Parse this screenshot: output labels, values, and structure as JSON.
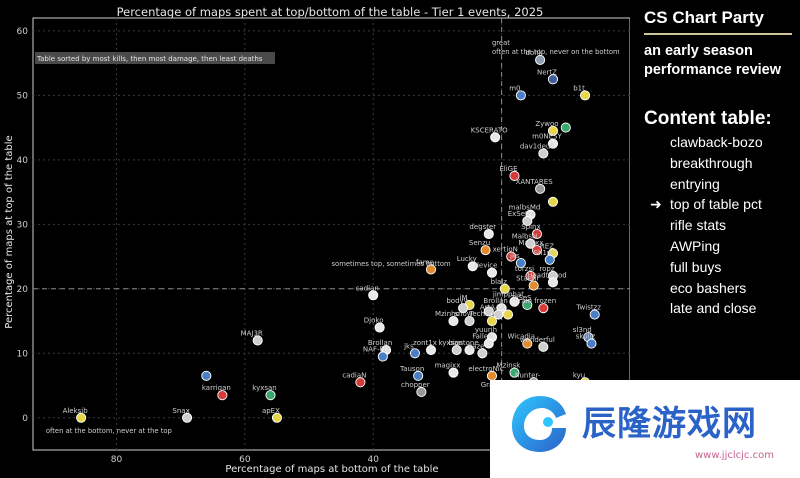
{
  "chart_data": {
    "type": "scatter",
    "title": "Percentage of maps spent at top/bottom of the table - Tier 1 events, 2025",
    "xlabel": "Percentage of maps at bottom of the table",
    "ylabel": "Percentage of maps at top of the table",
    "x_inverted": true,
    "xlim": [
      93,
      0
    ],
    "ylim": [
      -5,
      62
    ],
    "xticks": [
      80,
      60,
      40,
      20
    ],
    "yticks": [
      0,
      10,
      20,
      30,
      40,
      50,
      60
    ],
    "grid": true,
    "reference_lines": {
      "x": 20,
      "y": 20
    },
    "annotations": [
      {
        "text": "Table sorted by most kills, then most damage, then least deaths",
        "kind": "note"
      },
      {
        "text": "great",
        "x": 21.5,
        "y": 57.8
      },
      {
        "text": "often at the top, never on the bottom",
        "x": 21.5,
        "y": 56.4
      },
      {
        "text": "sometimes top, sometimes bottom",
        "x": 46.5,
        "y": 23.5
      },
      {
        "text": "often at the bottom, never at the top",
        "x": 91,
        "y": -2.4
      }
    ],
    "points": [
      {
        "name": "donk",
        "x": 14,
        "y": 55.5,
        "color": "#8fa0b4"
      },
      {
        "name": "NertZ",
        "x": 12,
        "y": 52.5,
        "color": "#3f5e9a"
      },
      {
        "name": "b1t",
        "x": 7,
        "y": 50,
        "color": "#e7d64a"
      },
      {
        "name": "m0",
        "x": 17,
        "y": 50,
        "color": "#4a7fc4"
      },
      {
        "name": "Zywoo",
        "x": 12,
        "y": 44.5,
        "color": "#e7d64a"
      },
      {
        "name": "siuhy",
        "x": 10,
        "y": 45,
        "color": "#3aa86c"
      },
      {
        "name": "KSCERATO",
        "x": 21,
        "y": 43.5,
        "color": "#e8e8e8"
      },
      {
        "name": "m0NESY",
        "x": 12,
        "y": 42.5,
        "color": "#e8e8e8"
      },
      {
        "name": "dav1deuS",
        "x": 13.5,
        "y": 41,
        "color": "#cfcfcf"
      },
      {
        "name": "EliGE",
        "x": 18,
        "y": 37.5,
        "color": "#d83a3a"
      },
      {
        "name": "XANTARES",
        "x": 14,
        "y": 35.5,
        "color": "#999999"
      },
      {
        "name": "frozen",
        "x": 12,
        "y": 33.5,
        "color": "#e7d64a"
      },
      {
        "name": "malbsMd",
        "x": 15.5,
        "y": 31.5,
        "color": "#e8e8e8"
      },
      {
        "name": "ExSetre",
        "x": 16,
        "y": 30.5,
        "color": "#cfcfcf"
      },
      {
        "name": "Spinx",
        "x": 14.5,
        "y": 28.5,
        "color": "#d83a3a"
      },
      {
        "name": "Malbs",
        "x": 15.5,
        "y": 27,
        "color": "#cfcfcf"
      },
      {
        "name": "degster",
        "x": 22,
        "y": 28.5,
        "color": "#e8e8e8"
      },
      {
        "name": "Magixx",
        "x": 14.5,
        "y": 26,
        "color": "#d83a3a"
      },
      {
        "name": "Senzu",
        "x": 22.5,
        "y": 26,
        "color": "#e28a2e"
      },
      {
        "name": "xertioN",
        "x": 18.5,
        "y": 25,
        "color": "#d83a3a"
      },
      {
        "name": "REZ",
        "x": 12,
        "y": 25.5,
        "color": "#e7d64a"
      },
      {
        "name": "Sh1ro",
        "x": 12.5,
        "y": 24.5,
        "color": "#4a7fc4"
      },
      {
        "name": "jks",
        "x": 17,
        "y": 24,
        "color": "#4a7fc4"
      },
      {
        "name": "Lucky",
        "x": 24.5,
        "y": 23.5,
        "color": "#e8e8e8"
      },
      {
        "name": "fame",
        "x": 31,
        "y": 23,
        "color": "#e28a2e"
      },
      {
        "name": "device",
        "x": 21.5,
        "y": 22.5,
        "color": "#e8e8e8"
      },
      {
        "name": "torzsi",
        "x": 15.5,
        "y": 22,
        "color": "#d83a3a"
      },
      {
        "name": "ropz",
        "x": 12,
        "y": 22,
        "color": "#cfcfcf"
      },
      {
        "name": "HeadtoGod",
        "x": 12,
        "y": 21,
        "color": "#e8e8e8"
      },
      {
        "name": "Staehr",
        "x": 15,
        "y": 20.5,
        "color": "#e28a2e"
      },
      {
        "name": "blalz",
        "x": 19.5,
        "y": 20,
        "color": "#e7d64a"
      },
      {
        "name": "cadian",
        "x": 40,
        "y": 19,
        "color": "#e8e8e8"
      },
      {
        "name": "jimpphat",
        "x": 18,
        "y": 18,
        "color": "#e8e8e8"
      },
      {
        "name": "Tesm",
        "x": 16,
        "y": 17.5,
        "color": "#3aa86c"
      },
      {
        "name": "iM",
        "x": 25,
        "y": 17.5,
        "color": "#e7d64a"
      },
      {
        "name": "bodyy",
        "x": 26,
        "y": 17,
        "color": "#cfcfcf"
      },
      {
        "name": "Brollan",
        "x": 20,
        "y": 17,
        "color": "#e8e8e8"
      },
      {
        "name": "frozen_",
        "x": 13.5,
        "y": 17,
        "color": "#d83a3a"
      },
      {
        "name": "Twistzz",
        "x": 5.5,
        "y": 16,
        "color": "#4a7fc4"
      },
      {
        "name": "rain",
        "x": 22,
        "y": 16.5,
        "color": "#cfcfcf"
      },
      {
        "name": "EliGE_2",
        "x": 19,
        "y": 16,
        "color": "#e7d64a"
      },
      {
        "name": "ArtAAA",
        "x": 20.5,
        "y": 16,
        "color": "#cfcfcf"
      },
      {
        "name": "Mzinho",
        "x": 27.5,
        "y": 15,
        "color": "#e8e8e8"
      },
      {
        "name": "snow",
        "x": 25,
        "y": 15,
        "color": "#cfcfcf"
      },
      {
        "name": "Techno4K",
        "x": 21.5,
        "y": 15,
        "color": "#e7d64a"
      },
      {
        "name": "Djoko",
        "x": 39,
        "y": 14,
        "color": "#e8e8e8"
      },
      {
        "name": "yuurih",
        "x": 21.5,
        "y": 12.5,
        "color": "#e8e8e8"
      },
      {
        "name": "sl3nd",
        "x": 6.5,
        "y": 12.5,
        "color": "#4a7fc4"
      },
      {
        "name": "skullz",
        "x": 6,
        "y": 11.5,
        "color": "#4a7fc4"
      },
      {
        "name": "MAJ3R",
        "x": 58,
        "y": 12,
        "color": "#cfcfcf"
      },
      {
        "name": "Wicadia",
        "x": 16,
        "y": 11.5,
        "color": "#e28a2e"
      },
      {
        "name": "FalleN",
        "x": 22,
        "y": 11.5,
        "color": "#e8e8e8"
      },
      {
        "name": "wonderful",
        "x": 13.5,
        "y": 11,
        "color": "#cfcfcf"
      },
      {
        "name": "Brollan_2",
        "x": 38,
        "y": 10.5,
        "color": "#e8e8e8"
      },
      {
        "name": "NAF-FLY",
        "x": 38.5,
        "y": 9.5,
        "color": "#4a7fc4"
      },
      {
        "name": "jks_2",
        "x": 33.5,
        "y": 10,
        "color": "#4a7fc4"
      },
      {
        "name": "zont1x",
        "x": 31,
        "y": 10.5,
        "color": "#e8e8e8"
      },
      {
        "name": "kyxsan",
        "x": 27,
        "y": 10.5,
        "color": "#cfcfcf"
      },
      {
        "name": "bodyy_2",
        "x": 25,
        "y": 10.5,
        "color": "#e8e8e8"
      },
      {
        "name": "siuhy_2",
        "x": 23,
        "y": 10,
        "color": "#cfcfcf"
      },
      {
        "name": "magixx",
        "x": 27.5,
        "y": 7,
        "color": "#e8e8e8"
      },
      {
        "name": "Tauson",
        "x": 33,
        "y": 6.5,
        "color": "#4a7fc4"
      },
      {
        "name": "electroNic",
        "x": 21.5,
        "y": 6.5,
        "color": "#e28a2e"
      },
      {
        "name": "Mzinho_2",
        "x": 18,
        "y": 7,
        "color": "#3aa86c"
      },
      {
        "name": "hunter-",
        "x": 15,
        "y": 5.5,
        "color": "#999999"
      },
      {
        "name": "Aleksib",
        "x": 7,
        "y": 5.5,
        "color": "#e7d64a"
      },
      {
        "name": "cadiaN",
        "x": 42,
        "y": 5.5,
        "color": "#d83a3a"
      },
      {
        "name": "flameZ",
        "x": 66,
        "y": 6.5,
        "color": "#4a7fc4"
      },
      {
        "name": "chopper",
        "x": 32.5,
        "y": 4,
        "color": "#999999"
      },
      {
        "name": "Graviti",
        "x": 20.5,
        "y": 4,
        "color": "#e8e8e8"
      },
      {
        "name": "karrigan",
        "x": 63.5,
        "y": 3.5,
        "color": "#d83a3a"
      },
      {
        "name": "kyxsan_2",
        "x": 56,
        "y": 3.5,
        "color": "#3aa86c"
      },
      {
        "name": "apEX",
        "x": 55,
        "y": 0,
        "color": "#e7d64a"
      },
      {
        "name": "Aleksib_2",
        "x": 85.5,
        "y": 0,
        "color": "#e7d64a"
      },
      {
        "name": "Snax",
        "x": 69,
        "y": 0,
        "color": "#cfcfcf"
      }
    ],
    "labels": {
      "donk": "donk",
      "NertZ": "NertZ",
      "b1t": "b1t",
      "m0": "m0",
      "Zywoo": "Zywoo",
      "siuhy": "",
      "KSCERATO": "KSCERATO",
      "m0NESY": "m0NESY",
      "dav1deuS": "dav1deuS",
      "EliGE": "EliGE",
      "XANTARES": "XANTARES",
      "frozen": "",
      "malbsMd": "malbsMd",
      "ExSetre": "ExSetre",
      "Spinx": "Spinx",
      "Malbs": "MalbsN",
      "degster": "degster",
      "Magixx": "Magixx",
      "Senzu": "Senzu",
      "xertioN": "xertioN",
      "REZ": "REZ",
      "Sh1ro": "Sh1ro",
      "jks": "jks",
      "Lucky": "Lucky",
      "fame": "fame",
      "device": "device",
      "torzsi": "torzsi",
      "ropz": "ropz",
      "HeadtoGod": "HeadtoGod",
      "Staehr": "Staehr",
      "blalz": "blalz",
      "cadian": "cadian",
      "jimpphat": "jimpphat",
      "Tesm": "TeSeS",
      "iM": "iM",
      "bodyy": "bodyy",
      "Brollan": "Brollan",
      "frozen_": "rain frozen",
      "Twistzz": "Twistzz",
      "rain": "",
      "EliGE_2": "",
      "ArtAAA": "ArtAAA",
      "Mzinho": "Mzinho",
      "snow": "snow",
      "Techno4K": "Techno4K",
      "Djoko": "Djoko",
      "yuurih": "yuurih",
      "sl3nd": "sl3nd",
      "skullz": "skullz",
      "MAJ3R": "MAJ3R",
      "Wicadia": "Wicadia",
      "FalleN": "FalleN",
      "wonderful": "wonderful",
      "Brollan_2": "Brollan",
      "NAF-FLY": "NAF-FLY",
      "jks_2": "jks",
      "zont1x": "zont1x",
      "kyxsan": "kyxsan",
      "bodyy_2": "bigstone",
      "siuhy_2": "kaze",
      "magixx": "magixx",
      "Tauson": "Tauson",
      "electroNic": "electroNic",
      "Mzinho_2": "Mzinsk",
      "hunter-": "hunter-",
      "Aleksib": "kyu",
      "cadiaN": "cadiaN",
      "flameZ": "",
      "chopper": "chopper",
      "Graviti": "Graviti",
      "karrigan": "karrigan",
      "kyxsan_2": "kyxsan",
      "apEX": "apEX",
      "Aleksib_2": "Aleksib",
      "Snax": "Snax"
    }
  },
  "sidebar": {
    "brand": "CS Chart Party",
    "subtitle": "an early season performance review",
    "toc_title": "Content table:",
    "current_marker": "➜",
    "items": [
      "clawback-bozo",
      "breakthrough",
      "entrying",
      "top of table pct",
      "rifle stats",
      "AWPing",
      "full buys",
      "eco bashers",
      "late and close"
    ],
    "current_index": 3
  },
  "watermark": {
    "text": "辰隆游戏网",
    "url": "www.jjclcjc.com"
  }
}
